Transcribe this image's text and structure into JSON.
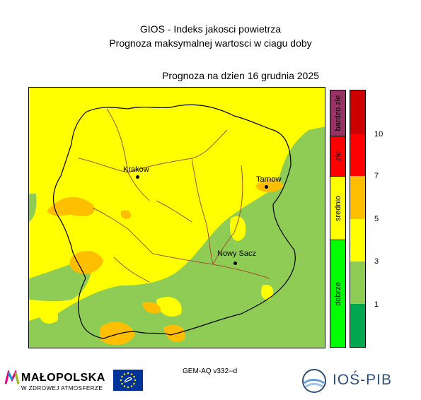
{
  "title": {
    "line1": "GIOS - Indeks jakosci powietrza",
    "line2": "Prognoza maksymalnej wartosci w ciagu doby"
  },
  "forecast_date": "Prognoza na dzien  16 grudnia 2025",
  "cities": [
    {
      "name": "Krakow"
    },
    {
      "name": "Tarnow"
    },
    {
      "name": "Nowy Sacz"
    }
  ],
  "legend": {
    "categories": [
      {
        "label": "bardzo złe",
        "color": "#993366"
      },
      {
        "label": "złe",
        "color": "#ff0000"
      },
      {
        "label": "srednio",
        "color": "#ffff00"
      },
      {
        "label": "dobrze",
        "color": "#00ff00"
      }
    ],
    "scale_colors": [
      "#00a650",
      "#8fcc55",
      "#ffff00",
      "#ffbf00",
      "#ff0000",
      "#cc0000"
    ],
    "tick_labels": [
      "1",
      "3",
      "5",
      "7",
      "10"
    ]
  },
  "map_colors": {
    "green": "#8fcc55",
    "yellow": "#ffff00",
    "orange": "#ffbf00",
    "boundary_black": "#000000",
    "boundary_brown": "#a0522d"
  },
  "model_label": "GEM-AQ v332--d",
  "logos": {
    "malopolska_name": "MAŁOPOLSKA",
    "malopolska_slogan": "W ZDROWEJ ATMOSFERZE",
    "eu": "EU life logo",
    "iospib_name": "IOŚ-PIB"
  }
}
